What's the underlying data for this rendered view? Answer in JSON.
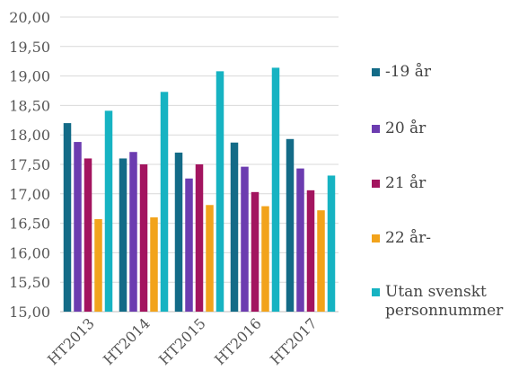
{
  "chart_data": {
    "type": "bar",
    "categories": [
      "HT2013",
      "HT2014",
      "HT2015",
      "HT2016",
      "HT2017"
    ],
    "series": [
      {
        "name": "-19 år",
        "color": "#136b87",
        "values": [
          18.2,
          17.6,
          17.7,
          17.87,
          17.93
        ]
      },
      {
        "name": "20 år",
        "color": "#6c3cb0",
        "values": [
          17.88,
          17.71,
          17.26,
          17.46,
          17.43
        ]
      },
      {
        "name": "21 år",
        "color": "#a3145f",
        "values": [
          17.6,
          17.5,
          17.5,
          17.03,
          17.06
        ]
      },
      {
        "name": "22 år-",
        "color": "#f2a31b",
        "values": [
          16.57,
          16.6,
          16.81,
          16.79,
          16.72
        ]
      },
      {
        "name": "Utan svenskt personnummer",
        "color": "#16b3c2",
        "values": [
          18.41,
          18.73,
          19.08,
          19.14,
          17.31
        ]
      }
    ],
    "yticks": [
      "15,00",
      "15,50",
      "16,00",
      "16,50",
      "17,00",
      "17,50",
      "18,00",
      "18,50",
      "19,00",
      "19,50",
      "20,00"
    ],
    "ylim": [
      15,
      20
    ],
    "grid": true,
    "legend_position": "right"
  }
}
